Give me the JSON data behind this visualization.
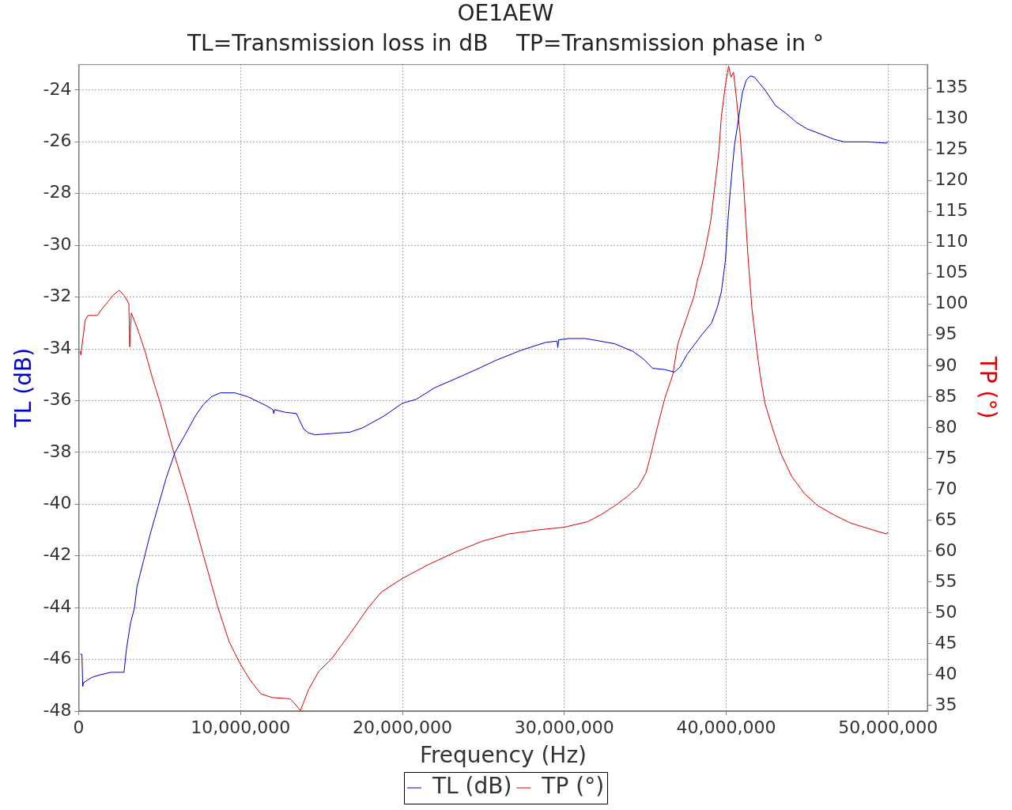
{
  "chart_data": {
    "type": "line",
    "title": "OE1AEW",
    "subtitle": "TL=Transmission loss in dB    TP=Transmission phase in °",
    "xlabel": "Frequency (Hz)",
    "ylabel": "TL (dB)",
    "y2label": "TP (°)",
    "xlim": [
      0,
      52450000
    ],
    "xticks": [
      0,
      {
        "value": 10000000,
        "label": "10,000,000"
      },
      {
        "value": 20000000,
        "label": "20,000,000"
      },
      {
        "value": 30000000,
        "label": "30,000,000"
      },
      {
        "value": 40000000,
        "label": "40,000,000"
      },
      {
        "value": 50000000,
        "label": "50,000,000"
      }
    ],
    "ylim": [
      -48,
      -23
    ],
    "yticks": [
      -48,
      -46,
      -44,
      -42,
      -40,
      -38,
      -36,
      -34,
      -32,
      -30,
      -28,
      -26,
      -24
    ],
    "y2lim": [
      34.1,
      138.9
    ],
    "y2ticks": [
      35,
      40,
      45,
      50,
      55,
      60,
      65,
      70,
      75,
      80,
      85,
      90,
      95,
      100,
      105,
      110,
      115,
      120,
      125,
      130,
      135
    ],
    "grid": true,
    "legend": "bottom",
    "marker": "none",
    "line_style": "solid",
    "series": [
      {
        "name": "TL (dB)",
        "color": "#0000cc",
        "axis": "y",
        "x": [
          100000,
          200000,
          250000,
          300000,
          800000,
          1300000,
          2000000,
          2800000,
          2950000,
          3200000,
          3450000,
          3600000,
          4000000,
          4400000,
          4900000,
          5400000,
          5950000,
          6500000,
          7200000,
          7700000,
          8200000,
          8750000,
          9650000,
          10450000,
          11600000,
          12000000,
          12050000,
          12100000,
          12750000,
          13450000,
          13900000,
          14200000,
          14600000,
          16750000,
          17550000,
          18850000,
          20000000,
          20850000,
          22000000,
          23300000,
          24900000,
          25750000,
          27350000,
          28850000,
          29550000,
          29600000,
          29650000,
          30300000,
          31300000,
          33100000,
          34250000,
          34900000,
          35450000,
          36200000,
          36800000,
          37150000,
          37600000,
          38500000,
          39100000,
          39450000,
          39700000,
          39950000,
          40100000,
          40250000,
          40500000,
          40750000,
          41000000,
          41250000,
          41500000,
          41750000,
          42400000,
          43050000,
          43700000,
          44350000,
          45000000,
          45850000,
          46650000,
          47300000,
          48750000,
          49900000,
          50000000
        ],
        "values": [
          -45.8,
          -45.8,
          -47.05,
          -46.9,
          -46.7,
          -46.6,
          -46.5,
          -46.5,
          -45.6,
          -44.6,
          -44.0,
          -43.2,
          -42.2,
          -41.2,
          -40.1,
          -39.0,
          -38.0,
          -37.4,
          -36.6,
          -36.15,
          -35.85,
          -35.7,
          -35.7,
          -35.85,
          -36.2,
          -36.35,
          -36.5,
          -36.35,
          -36.45,
          -36.5,
          -37.1,
          -37.25,
          -37.32,
          -37.22,
          -37.05,
          -36.6,
          -36.1,
          -35.95,
          -35.5,
          -35.15,
          -34.7,
          -34.45,
          -34.05,
          -33.75,
          -33.7,
          -33.95,
          -33.65,
          -33.6,
          -33.6,
          -33.8,
          -34.1,
          -34.4,
          -34.75,
          -34.8,
          -34.9,
          -34.7,
          -34.2,
          -33.45,
          -33.0,
          -32.4,
          -31.8,
          -30.6,
          -29.1,
          -27.9,
          -26.2,
          -25.15,
          -24.1,
          -23.6,
          -23.45,
          -23.5,
          -24.0,
          -24.6,
          -24.9,
          -25.25,
          -25.5,
          -25.7,
          -25.9,
          -26.0,
          -26.0,
          -26.05,
          -26.0
        ]
      },
      {
        "name": "TP (°)",
        "color": "#dd0000",
        "axis": "y2",
        "x": [
          100000,
          130000,
          400000,
          570000,
          1150000,
          1450000,
          1800000,
          2100000,
          2500000,
          2850000,
          3100000,
          3150000,
          3250000,
          3600000,
          4100000,
          4550000,
          5050000,
          5550000,
          5950000,
          6700000,
          7700000,
          8600000,
          9300000,
          9950000,
          10600000,
          11250000,
          11950000,
          13050000,
          13250000,
          13700000,
          14200000,
          14850000,
          15600000,
          16750000,
          17900000,
          18700000,
          20000000,
          21650000,
          23300000,
          24900000,
          26550000,
          28200000,
          30000000,
          31450000,
          32250000,
          33250000,
          33900000,
          34550000,
          35050000,
          35350000,
          35700000,
          36200000,
          36700000,
          37000000,
          37500000,
          38000000,
          38250000,
          38500000,
          38750000,
          39050000,
          39300000,
          39550000,
          39700000,
          39950000,
          40150000,
          40300000,
          40450000,
          40600000,
          40850000,
          41100000,
          41350000,
          41600000,
          41900000,
          42100000,
          42400000,
          42900000,
          43400000,
          44050000,
          44850000,
          45650000,
          46650000,
          47650000,
          48750000,
          49900000,
          50000000
        ],
        "values": [
          92.4,
          91.8,
          97.4,
          98.2,
          98.2,
          99.3,
          100.4,
          101.4,
          102.3,
          101.3,
          100.1,
          93.1,
          98.6,
          96.3,
          92.4,
          88.1,
          83.9,
          79.1,
          75.3,
          68.9,
          59.4,
          50.9,
          45.3,
          41.9,
          39.1,
          36.9,
          36.3,
          36.1,
          35.6,
          34.2,
          37.6,
          40.6,
          42.5,
          46.6,
          50.9,
          53.4,
          55.6,
          57.9,
          59.9,
          61.6,
          62.8,
          63.4,
          63.9,
          64.8,
          65.9,
          67.6,
          68.9,
          70.4,
          72.7,
          75.7,
          79.6,
          84.7,
          88.6,
          93.5,
          97.4,
          101.2,
          104.2,
          106.4,
          109.4,
          113.6,
          119.2,
          124.8,
          130.4,
          135.5,
          138.6,
          136.8,
          137.6,
          134.2,
          127.8,
          118.4,
          107.6,
          99.1,
          92.5,
          88.5,
          83.9,
          79.6,
          75.7,
          72.1,
          69.3,
          67.4,
          65.9,
          64.6,
          63.7,
          62.8,
          63.1
        ]
      }
    ]
  }
}
